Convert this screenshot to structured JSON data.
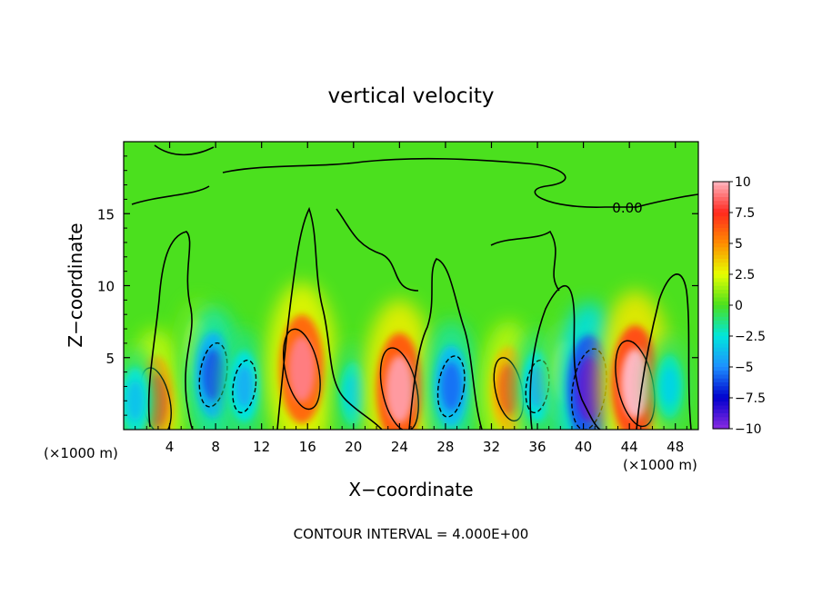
{
  "chart_data": {
    "type": "heatmap",
    "title": "vertical velocity",
    "xlabel": "X−coordinate",
    "ylabel": "Z−coordinate",
    "x_unit_label": "(×1000 m)",
    "z_unit_label": "(×1000 m)",
    "xlim": [
      0,
      50
    ],
    "ylim": [
      0,
      20
    ],
    "x_ticks": [
      4,
      8,
      12,
      16,
      20,
      24,
      28,
      32,
      36,
      40,
      44,
      48
    ],
    "y_ticks": [
      5,
      10,
      15
    ],
    "contour_label": "0.00",
    "footer": "CONTOUR INTERVAL = 4.000E+00",
    "colorbar": {
      "ticks": [
        10,
        7.5,
        5,
        2.5,
        0,
        -2.5,
        -5,
        -7.5,
        -10
      ],
      "tick_labels": [
        "10",
        "7.5",
        "5",
        "2.5",
        "0",
        "−2.5",
        "−5",
        "−7.5",
        "−10"
      ],
      "colors": [
        "#ffb6c1",
        "#ff3030",
        "#ff8c00",
        "#ffff00",
        "#32cd32",
        "#00ffcc",
        "#1e90ff",
        "#0000cd",
        "#8a2be2"
      ]
    },
    "features": [
      {
        "x": 2.8,
        "z": 2.0,
        "value": 6.5
      },
      {
        "x": 6.5,
        "z": 5.5,
        "value": 3.0
      },
      {
        "x": 7.8,
        "z": 3.8,
        "value": -6.0
      },
      {
        "x": 1.0,
        "z": 2.0,
        "value": -3.5
      },
      {
        "x": 10.5,
        "z": 3.0,
        "value": -4.0
      },
      {
        "x": 15.5,
        "z": 4.2,
        "value": 9.0
      },
      {
        "x": 20.0,
        "z": 2.5,
        "value": -3.0
      },
      {
        "x": 24.0,
        "z": 2.8,
        "value": 9.5
      },
      {
        "x": 28.5,
        "z": 3.0,
        "value": -5.5
      },
      {
        "x": 33.5,
        "z": 2.8,
        "value": 6.0
      },
      {
        "x": 36.0,
        "z": 3.0,
        "value": -4.0
      },
      {
        "x": 38.5,
        "z": 4.0,
        "value": 3.0
      },
      {
        "x": 40.5,
        "z": 2.8,
        "value": -9.0
      },
      {
        "x": 44.5,
        "z": 3.2,
        "value": 10.0
      },
      {
        "x": 47.5,
        "z": 3.0,
        "value": -3.0
      }
    ]
  }
}
